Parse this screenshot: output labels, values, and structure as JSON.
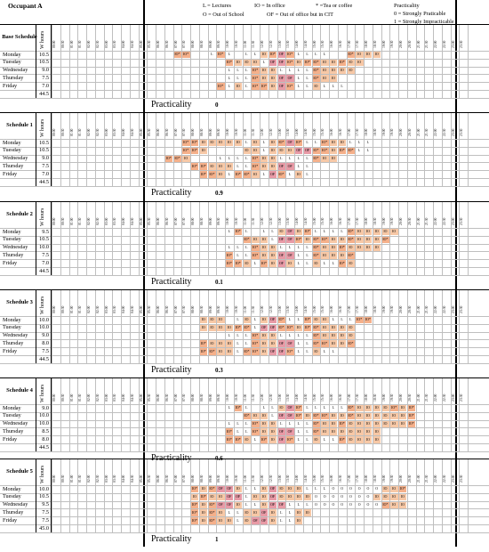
{
  "header": {
    "occupant": "Occupant A",
    "legend": {
      "lectures": "L = Lectures",
      "in_office": "IO = In office",
      "tea": "* =Tea or coffee",
      "out_school": "O = Out of School",
      "out_office_cit": "OF = Out of office but in CIT",
      "practicality_title": "Practicality",
      "strong_practicable": "0 = Strongly Praticable",
      "strong_impracticable": "1 = Strongly Impracticable"
    }
  },
  "columns": {
    "hours_header": "W hours",
    "slots": [
      "00:00",
      "00:30",
      "01:00",
      "01:30",
      "02:00",
      "02:30",
      "03:00",
      "03:30",
      "04:00",
      "04:30",
      "05:00",
      "05:30",
      "06:00",
      "06:30",
      "07:00",
      "07:30",
      "08:00",
      "08:30",
      "09:00",
      "09:30",
      "10:00",
      "10:30",
      "11:00",
      "11:30",
      "12:00",
      "12:30",
      "13:00",
      "13:30",
      "14:00",
      "14:30",
      "15:00",
      "15:30",
      "16:00",
      "16:30",
      "17:00",
      "17:30",
      "18:00",
      "18:30",
      "19:00",
      "19:30",
      "20:00",
      "20:30",
      "21:00",
      "21:30",
      "22:00",
      "22:30",
      "23:00",
      "23:30"
    ]
  },
  "colors": {
    "IO": "#f7c8a6",
    "IO*": "#f5b08a",
    "L": "#ffffff",
    "OF": "#e89aa6",
    "O": "#ffffff"
  },
  "practicality_label": "Practicality",
  "tables": [
    {
      "title": "Base Schedule",
      "total": "44.5",
      "practicality": "0",
      "rows": [
        {
          "day": "Monday",
          "hours": "10.5",
          "start": 14,
          "codes": [
            "IO*",
            "IO*",
            "",
            "",
            "L",
            "IO*",
            "L",
            "",
            "L",
            "L",
            "IO",
            "IO*",
            "OF",
            "IO*",
            "L",
            "L",
            "L",
            "L",
            "",
            "",
            "IO*",
            "IO",
            "IO",
            "IO"
          ]
        },
        {
          "day": "Tuesday",
          "hours": "10.5",
          "start": 14,
          "codes": [
            "",
            "",
            "",
            "",
            "",
            "",
            "IO*",
            "IO",
            "IO",
            "IO",
            "L",
            "OF",
            "OF",
            "IO*",
            "IO",
            "IO*",
            "IO*",
            "IO",
            "IO",
            "IO*",
            "IO",
            "IO"
          ]
        },
        {
          "day": "Wednesday",
          "hours": "9.0",
          "start": 14,
          "codes": [
            "",
            "",
            "",
            "",
            "",
            "",
            "L",
            "L",
            "L",
            "IO*",
            "IO",
            "IO",
            "L",
            "L",
            "L",
            "L",
            "IO*",
            "IO",
            "IO",
            "IO",
            "IO"
          ]
        },
        {
          "day": "Thursday",
          "hours": "7.5",
          "start": 14,
          "codes": [
            "",
            "",
            "",
            "",
            "",
            "",
            "L",
            "L",
            "L",
            "IO*",
            "IO",
            "IO",
            "OF",
            "OF",
            "L",
            "L",
            "IO*",
            "IO",
            "IO"
          ]
        },
        {
          "day": "Friday",
          "hours": "7.0",
          "start": 14,
          "codes": [
            "",
            "",
            "",
            "",
            "",
            "IO*",
            "L",
            "IO",
            "L",
            "IO*",
            "IO*",
            "IO",
            "OF",
            "IO*",
            "L",
            "L",
            "IO",
            "L",
            "L",
            "L"
          ]
        }
      ]
    },
    {
      "title": "Schedule 1",
      "total": "44.5",
      "practicality": "0.9",
      "rows": [
        {
          "day": "Monday",
          "hours": "10.5",
          "start": 14,
          "codes": [
            "",
            "IO*",
            "IO*",
            "IO",
            "IO",
            "IO",
            "IO",
            "IO",
            "L",
            "IO",
            "L",
            "IO",
            "IO*",
            "OF",
            "IO*",
            "L",
            "L",
            "IO*",
            "IO",
            "IO",
            "L",
            "L",
            "L"
          ]
        },
        {
          "day": "Tuesday",
          "hours": "10.5",
          "start": 14,
          "codes": [
            "",
            "IO*",
            "IO*",
            "IO",
            "",
            "",
            "",
            "",
            "IO",
            "IO",
            "L",
            "IO",
            "IO",
            "IO",
            "OF",
            "OF",
            "IO*",
            "IO*",
            "IO",
            "IO*",
            "IO*",
            "L",
            "L"
          ]
        },
        {
          "day": "Wednesday",
          "hours": "9.0",
          "start": 13,
          "codes": [
            "IO*",
            "IO*",
            "IO",
            "",
            "",
            "",
            "L",
            "L",
            "L",
            "L",
            "IO*",
            "IO",
            "IO",
            "L",
            "L",
            "L",
            "L",
            "IO*",
            "IO",
            "IO"
          ]
        },
        {
          "day": "Thursday",
          "hours": "7.5",
          "start": 14,
          "codes": [
            "",
            "",
            "IO*",
            "IO*",
            "IO",
            "IO",
            "IO",
            "L",
            "L",
            "IO*",
            "IO",
            "IO",
            "OF",
            "OF",
            "L",
            "L"
          ]
        },
        {
          "day": "Friday",
          "hours": "7.0",
          "start": 14,
          "codes": [
            "",
            "",
            "",
            "IO*",
            "IO*",
            "IO",
            "L",
            "IO*",
            "IO*",
            "IO",
            "L",
            "OF",
            "IO*",
            "L",
            "IO",
            "L"
          ]
        }
      ]
    },
    {
      "title": "Schedule 2",
      "total": "44.5",
      "practicality": "0.1",
      "rows": [
        {
          "day": "Monday",
          "hours": "9.5",
          "start": 14,
          "codes": [
            "",
            "",
            "",
            "",
            "",
            "",
            "L",
            "IO*",
            "L",
            "",
            "L",
            "L",
            "IO",
            "OF",
            "IO",
            "IO*",
            "L",
            "L",
            "L",
            "L",
            "IO*",
            "IO",
            "IO",
            "IO",
            "IO",
            "IO"
          ]
        },
        {
          "day": "Tuesday",
          "hours": "10.5",
          "start": 14,
          "codes": [
            "",
            "",
            "",
            "",
            "",
            "",
            "",
            "",
            "IO*",
            "IO",
            "IO",
            "L",
            "OF",
            "OF",
            "IO*",
            "IO",
            "IO*",
            "IO*",
            "IO",
            "IO",
            "IO*",
            "IO",
            "IO",
            "IO",
            "IO*"
          ]
        },
        {
          "day": "Wednesday",
          "hours": "10.0",
          "start": 14,
          "codes": [
            "",
            "",
            "",
            "",
            "",
            "",
            "L",
            "L",
            "L",
            "IO*",
            "IO",
            "IO",
            "L",
            "L",
            "L",
            "L",
            "IO*",
            "IO",
            "IO",
            "IO*",
            "IO",
            "IO",
            "IO",
            "IO"
          ]
        },
        {
          "day": "Thursday",
          "hours": "7.5",
          "start": 14,
          "codes": [
            "",
            "",
            "",
            "",
            "",
            "",
            "IO*",
            "L",
            "L",
            "IO*",
            "IO",
            "IO",
            "OF",
            "OF",
            "L",
            "L",
            "IO*",
            "IO",
            "IO",
            "IO",
            "IO*"
          ]
        },
        {
          "day": "Friday",
          "hours": "7.0",
          "start": 14,
          "codes": [
            "",
            "",
            "",
            "",
            "",
            "",
            "IO*",
            "IO*",
            "IO",
            "L",
            "IO*",
            "IO",
            "OF",
            "IO",
            "L",
            "L",
            "IO",
            "L",
            "L",
            "IO*",
            "IO"
          ]
        }
      ]
    },
    {
      "title": "Schedule 3",
      "total": "44.5",
      "practicality": "0.3",
      "rows": [
        {
          "day": "Monday",
          "hours": "10.0",
          "start": 14,
          "codes": [
            "",
            "",
            "",
            "IO",
            "IO",
            "IO",
            "",
            "L",
            "IO",
            "L",
            "IO",
            "OF",
            "IO*",
            "L",
            "L",
            "IO*",
            "IO",
            "IO",
            "L",
            "L",
            "L",
            "IO*",
            "IO*"
          ]
        },
        {
          "day": "Tuesday",
          "hours": "10.0",
          "start": 14,
          "codes": [
            "",
            "",
            "",
            "IO",
            "IO",
            "IO",
            "IO",
            "IO*",
            "IO*",
            "L",
            "OF",
            "OF",
            "IO*",
            "IO*",
            "IO",
            "IO*",
            "IO*",
            "IO",
            "IO",
            "IO",
            "IO"
          ]
        },
        {
          "day": "Wednesday",
          "hours": "9.0",
          "start": 14,
          "codes": [
            "",
            "",
            "",
            "",
            "",
            "",
            "L",
            "L",
            "L",
            "IO*",
            "IO",
            "IO",
            "L",
            "L",
            "L",
            "L",
            "IO*",
            "IO",
            "IO",
            "IO",
            "IO"
          ]
        },
        {
          "day": "Thursday",
          "hours": "8.0",
          "start": 14,
          "codes": [
            "",
            "",
            "",
            "IO*",
            "IO",
            "IO",
            "IO",
            "L",
            "L",
            "IO*",
            "IO",
            "IO",
            "OF",
            "OF",
            "L",
            "L",
            "IO*",
            "IO*",
            "IO",
            "IO",
            "IO*"
          ]
        },
        {
          "day": "Friday",
          "hours": "7.5",
          "start": 14,
          "codes": [
            "",
            "",
            "",
            "IO*",
            "IO*",
            "IO",
            "IO",
            "L",
            "IO*",
            "IO*",
            "IO",
            "OF",
            "OF",
            "IO*",
            "L",
            "L",
            "IO",
            "L",
            "L"
          ]
        }
      ]
    },
    {
      "title": "Schedule 4",
      "total": "44.5",
      "practicality": "0.6",
      "rows": [
        {
          "day": "Monday",
          "hours": "9.0",
          "start": 14,
          "codes": [
            "",
            "",
            "",
            "",
            "",
            "",
            "L",
            "IO*",
            "L",
            "",
            "L",
            "L",
            "IO",
            "OF",
            "IO*",
            "L",
            "L",
            "L",
            "L",
            "L",
            "IO*",
            "IO",
            "IO",
            "IO",
            "IO",
            "IO*",
            "IO",
            "IO*"
          ]
        },
        {
          "day": "Tuesday",
          "hours": "10.0",
          "start": 14,
          "codes": [
            "",
            "",
            "",
            "",
            "",
            "",
            "",
            "",
            "IO*",
            "IO",
            "IO",
            "L",
            "OF",
            "OF",
            "IO*",
            "IO",
            "IO*",
            "IO*",
            "IO",
            "IO",
            "IO*",
            "IO",
            "IO",
            "IO",
            "IO",
            "IO",
            "IO",
            "IO*"
          ]
        },
        {
          "day": "Wednesday",
          "hours": "10.0",
          "start": 14,
          "codes": [
            "",
            "",
            "",
            "",
            "",
            "",
            "L",
            "L",
            "L",
            "IO*",
            "IO",
            "IO",
            "L",
            "L",
            "L",
            "L",
            "IO*",
            "IO",
            "IO",
            "IO*",
            "IO",
            "IO",
            "IO",
            "IO",
            "IO",
            "IO",
            "IO",
            "IO*"
          ]
        },
        {
          "day": "Thursday",
          "hours": "8.5",
          "start": 14,
          "codes": [
            "",
            "",
            "",
            "",
            "",
            "",
            "IO*",
            "L",
            "L",
            "IO*",
            "IO",
            "IO",
            "OF",
            "OF",
            "L",
            "L",
            "IO*",
            "IO",
            "IO",
            "IO",
            "IO",
            "IO",
            "IO",
            "IO"
          ]
        },
        {
          "day": "Friday",
          "hours": "8.0",
          "start": 14,
          "codes": [
            "",
            "",
            "",
            "",
            "",
            "",
            "IO*",
            "IO*",
            "IO",
            "L",
            "IO*",
            "IO",
            "OF",
            "IO*",
            "L",
            "L",
            "IO",
            "L",
            "L",
            "IO*",
            "IO",
            "IO",
            "IO",
            "IO"
          ]
        }
      ]
    },
    {
      "title": "Schedule 5",
      "total": "45.0",
      "practicality": "1",
      "rows": [
        {
          "day": "Monday",
          "hours": "10.0",
          "start": 14,
          "codes": [
            "",
            "",
            "IO*",
            "IO",
            "IO*",
            "OF",
            "OF",
            "IO",
            "L",
            "L",
            "IO",
            "OF",
            "IO",
            "IO",
            "IO",
            "L",
            "L",
            "L",
            "O",
            "O",
            "O",
            "O",
            "O",
            "O",
            "IO",
            "IO",
            "IO*"
          ]
        },
        {
          "day": "Tuesday",
          "hours": "10.5",
          "start": 14,
          "codes": [
            "",
            "",
            "IO",
            "IO*",
            "IO",
            "IO",
            "OF",
            "OF",
            "L",
            "IO",
            "IO",
            "OF",
            "IO",
            "IO",
            "IO",
            "IO",
            "O",
            "O",
            "O",
            "O",
            "O",
            "O",
            "O",
            "IO",
            "IO",
            "IO",
            "IO"
          ]
        },
        {
          "day": "Wednesday",
          "hours": "9.5",
          "start": 14,
          "codes": [
            "",
            "",
            "IO*",
            "IO",
            "IO*",
            "OF",
            "OF",
            "IO",
            "L",
            "L",
            "IO",
            "OF",
            "OF",
            "L",
            "L",
            "L",
            "O",
            "O",
            "O",
            "O",
            "O",
            "O",
            "O",
            "O",
            "IO*",
            "IO",
            "IO"
          ]
        },
        {
          "day": "Thursday",
          "hours": "7.5",
          "start": 14,
          "codes": [
            "",
            "",
            "IO*",
            "IO",
            "IO*",
            "IO",
            "L",
            "L",
            "IO",
            "IO",
            "OF",
            "IO",
            "L",
            "L",
            "IO",
            "IO"
          ]
        },
        {
          "day": "Friday",
          "hours": "7.5",
          "start": 14,
          "codes": [
            "",
            "",
            "IO*",
            "IO",
            "IO*",
            "IO",
            "IO",
            "L",
            "IO",
            "OF",
            "OF",
            "IO",
            "L",
            "L",
            "IO"
          ]
        }
      ]
    }
  ]
}
